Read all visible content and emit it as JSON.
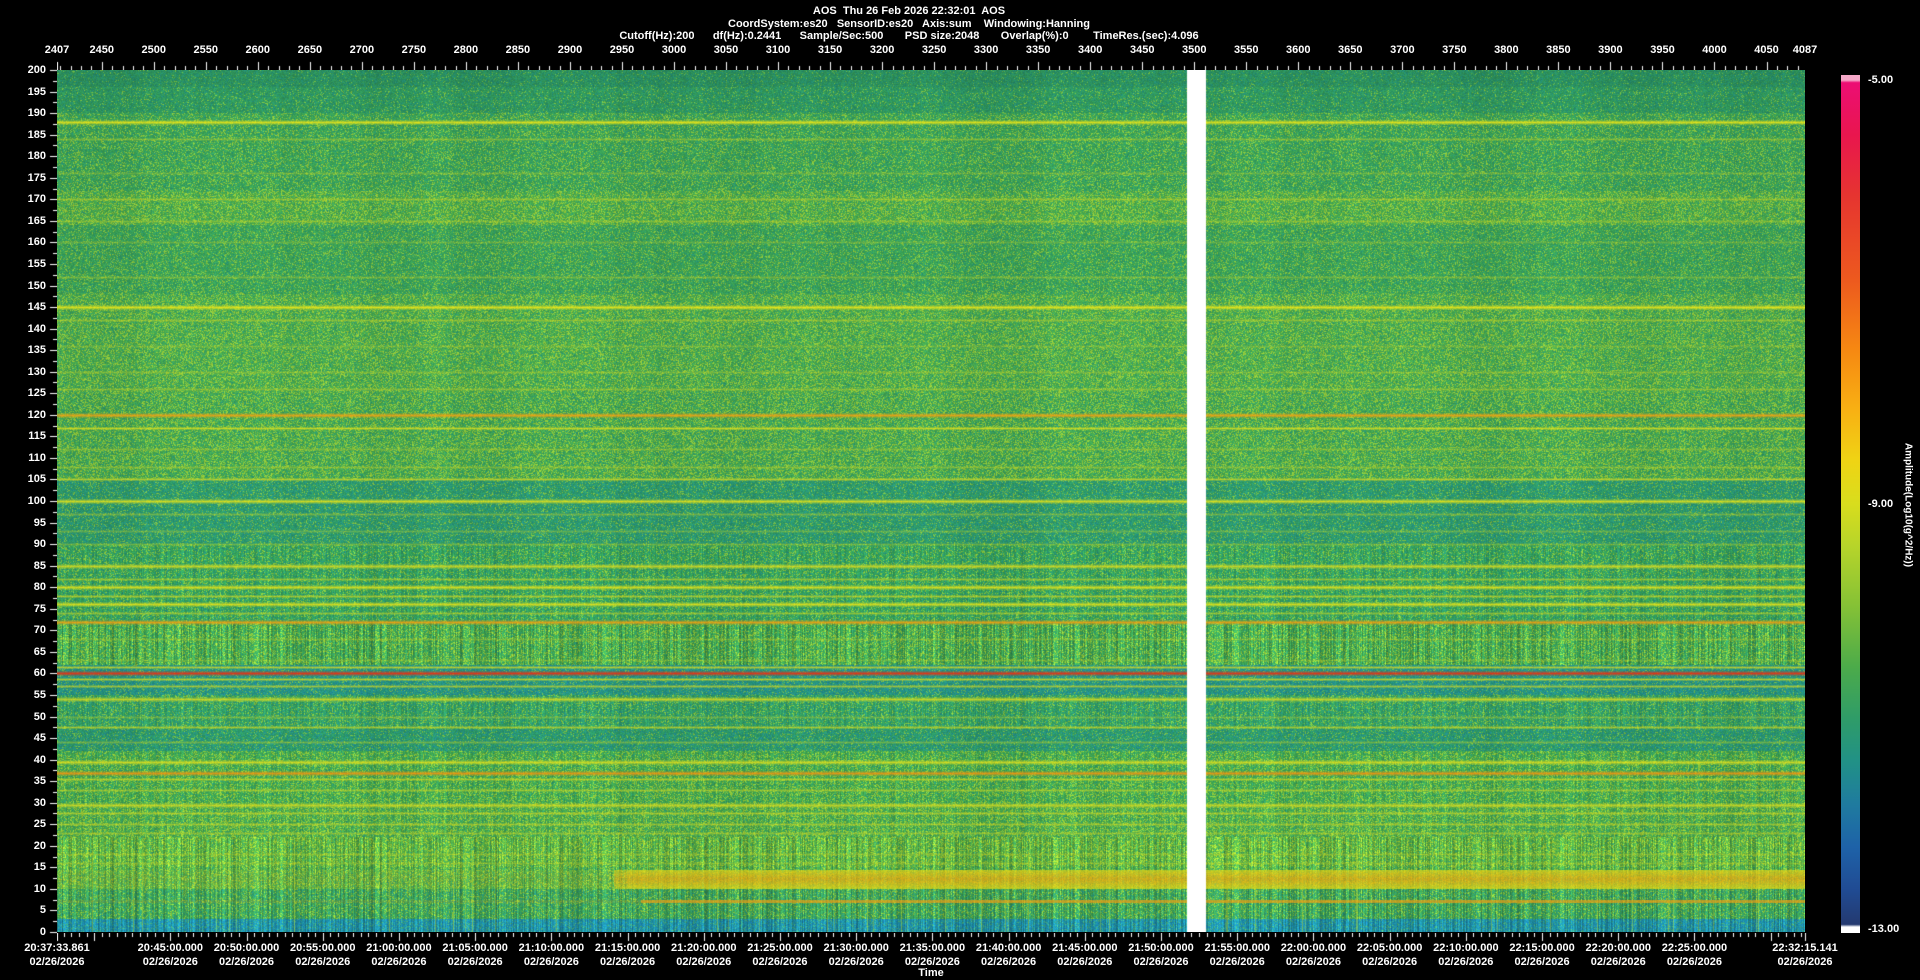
{
  "header": {
    "line1": "AOS  Thu 26 Feb 2026 22:32:01  AOS",
    "line2": "CoordSystem:es20   SensorID:es20   Axis:sum    Windowing:Hanning",
    "line3": "Cutoff(Hz):200      df(Hz):0.2441      Sample/Sec:500       PSD size:2048       Overlap(%):0        TimeRes.(sec):4.096"
  },
  "chart_data": {
    "type": "heatmap",
    "subtype": "spectrogram",
    "record_axis": {
      "min": 2407,
      "max": 4087,
      "ticks": [
        2407,
        2450,
        2500,
        2550,
        2600,
        2650,
        2700,
        2750,
        2800,
        2850,
        2900,
        2950,
        3000,
        3050,
        3100,
        3150,
        3200,
        3250,
        3300,
        3350,
        3400,
        3450,
        3500,
        3550,
        3600,
        3650,
        3700,
        3750,
        3800,
        3850,
        3900,
        3950,
        4000,
        4050,
        4087
      ],
      "minor_step": 10
    },
    "freq_axis": {
      "unit": "Hz",
      "min": 0,
      "max": 200,
      "ticks": [
        200,
        195,
        190,
        185,
        180,
        175,
        170,
        165,
        160,
        155,
        150,
        145,
        140,
        135,
        130,
        125,
        120,
        115,
        110,
        105,
        100,
        95,
        90,
        85,
        80,
        75,
        70,
        65,
        60,
        55,
        50,
        45,
        40,
        35,
        30,
        25,
        20,
        15,
        10,
        5,
        0
      ],
      "minor_step": 2.5
    },
    "time_axis": {
      "title": "Time",
      "date": "02/26/2026",
      "start": "20:37:33.861",
      "end": "22:32:15.141",
      "total_seconds": 6881.28,
      "ticks": [
        [
          "20:37:33.861",
          0
        ],
        [
          "20:45:00.000",
          446.139
        ],
        [
          "20:50:00.000",
          746.139
        ],
        [
          "20:55:00.000",
          1046.139
        ],
        [
          "21:00:00.000",
          1346.139
        ],
        [
          "21:05:00.000",
          1646.139
        ],
        [
          "21:10:00.000",
          1946.139
        ],
        [
          "21:15:00.000",
          2246.139
        ],
        [
          "21:20:00.000",
          2546.139
        ],
        [
          "21:25:00.000",
          2846.139
        ],
        [
          "21:30:00.000",
          3146.139
        ],
        [
          "21:35:00.000",
          3446.139
        ],
        [
          "21:40:00.000",
          3746.139
        ],
        [
          "21:45:00.000",
          4046.139
        ],
        [
          "21:50:00.000",
          4346.139
        ],
        [
          "21:55:00.000",
          4646.139
        ],
        [
          "22:00:00.000",
          4946.139
        ],
        [
          "22:05:00.000",
          5246.139
        ],
        [
          "22:10:00.000",
          5546.139
        ],
        [
          "22:15:00.000",
          5846.139
        ],
        [
          "22:20:00.000",
          6146.139
        ],
        [
          "22:25:00.000",
          6446.139
        ],
        [
          "22:32:15.141",
          6881.28
        ]
      ]
    },
    "colorbar": {
      "label": "Amplitude(Log10(g^2/Hz))",
      "tick_labels": [
        "-5.00",
        "-9.00",
        "-13.00"
      ],
      "tick_values": [
        -5,
        -9,
        -13
      ],
      "overflow_cap_color": "#f5a8c8",
      "underflow_cap_color": "#ffffff",
      "gradient_stops": [
        [
          0,
          "#f5a8c8"
        ],
        [
          0.6,
          "#f5a8c8"
        ],
        [
          0.9,
          "#ec0e74"
        ],
        [
          7,
          "#e9164e"
        ],
        [
          14,
          "#e63430"
        ],
        [
          24,
          "#ed5a1e"
        ],
        [
          32,
          "#f68812"
        ],
        [
          39,
          "#f8b013"
        ],
        [
          45,
          "#efd414"
        ],
        [
          50,
          "#d8dd1d"
        ],
        [
          55,
          "#b6d42a"
        ],
        [
          62,
          "#84c136"
        ],
        [
          69,
          "#4cab4a"
        ],
        [
          75,
          "#2f9c68"
        ],
        [
          80,
          "#219186"
        ],
        [
          85,
          "#1f7b9f"
        ],
        [
          90,
          "#1e62a8"
        ],
        [
          95,
          "#204b93"
        ],
        [
          99.0,
          "#243a70"
        ],
        [
          99.3,
          "#ffffff"
        ],
        [
          100,
          "#ffffff"
        ]
      ]
    },
    "background_bands": [
      [
        196,
        200.01,
        "#2e9058",
        "#1e8678",
        0.3,
        "#7cbe3a",
        0.06,
        0
      ],
      [
        190,
        196,
        "#31985a",
        "#208a7c",
        0.24,
        "#90c838",
        0.1,
        0
      ],
      [
        172,
        190,
        "#3aa156",
        "#23907a",
        0.16,
        "#a0ce34",
        0.22,
        0
      ],
      [
        164,
        172,
        "#47a84e",
        "#23907a",
        0.1,
        "#aad032",
        0.3,
        0
      ],
      [
        148,
        164,
        "#3aa156",
        "#23907a",
        0.16,
        "#9ccc36",
        0.2,
        0
      ],
      [
        125,
        148,
        "#46a850",
        "#23907a",
        0.12,
        "#a8d032",
        0.28,
        0
      ],
      [
        105,
        125,
        "#42a552",
        "#22907c",
        0.14,
        "#a6d032",
        0.3,
        0
      ],
      [
        90,
        105,
        "#2f9a66",
        "#1f8e8e",
        0.26,
        "#94c838",
        0.14,
        0
      ],
      [
        72,
        90,
        "#34a05a",
        "#218c84",
        0.2,
        "#9ccc34",
        0.2,
        1
      ],
      [
        62,
        72,
        "#3ca254",
        "#23907a",
        0.1,
        "#a4ce32",
        0.3,
        2
      ],
      [
        55,
        62,
        "#27957c",
        "#1f82a2",
        0.22,
        "#8cc43a",
        0.12,
        0
      ],
      [
        47,
        55,
        "#339e60",
        "#208c8c",
        0.2,
        "#98ca36",
        0.18,
        1
      ],
      [
        42,
        47,
        "#2d9a68",
        "#1f8898",
        0.24,
        "#90c638",
        0.12,
        0
      ],
      [
        30,
        42,
        "#3ea452",
        "#22907e",
        0.1,
        "#a6d032",
        0.28,
        1
      ],
      [
        22,
        30,
        "#44a650",
        "#23907a",
        0.1,
        "#aad030",
        0.3,
        1
      ],
      [
        15,
        22,
        "#52ac48",
        "#24927a",
        0.08,
        "#b2d42e",
        0.32,
        2
      ],
      [
        10,
        15,
        "#48a84c",
        "#23907c",
        0.1,
        "#a8d032",
        0.28,
        2
      ],
      [
        3,
        10,
        "#3aa058",
        "#21908a",
        0.16,
        "#9ccc34",
        0.22,
        2
      ],
      [
        0,
        3,
        "#1f93a4",
        "#1b7cb0",
        0.28,
        "#52b06a",
        0.16,
        2
      ]
    ],
    "spectral_lines": [
      [
        188,
        "#e9e518",
        2,
        0.92
      ],
      [
        184,
        "#c9d922",
        1,
        0.45
      ],
      [
        176,
        "#c4d726",
        1,
        0.33
      ],
      [
        170,
        "#d4dc20",
        1,
        0.48
      ],
      [
        165,
        "#cbd923",
        1,
        0.42
      ],
      [
        160,
        "#c2d527",
        1,
        0.32
      ],
      [
        152,
        "#cad923",
        1,
        0.38
      ],
      [
        145,
        "#ece718",
        2,
        0.92
      ],
      [
        142,
        "#d2da20",
        1,
        0.48
      ],
      [
        136,
        "#c2d527",
        1,
        0.3
      ],
      [
        130,
        "#cbd923",
        1,
        0.38
      ],
      [
        126,
        "#d2da20",
        1,
        0.42
      ],
      [
        120,
        "#f3a311",
        2,
        0.92
      ],
      [
        117,
        "#e7e31b",
        1,
        0.8
      ],
      [
        112,
        "#cad823",
        1,
        0.38
      ],
      [
        108,
        "#cdd922",
        1,
        0.42
      ],
      [
        105,
        "#e3e11c",
        1,
        0.75
      ],
      [
        100,
        "#e9e518",
        2,
        0.88
      ],
      [
        97,
        "#cdd922",
        1,
        0.42
      ],
      [
        93,
        "#c6d725",
        1,
        0.36
      ],
      [
        90,
        "#cbd922",
        1,
        0.38
      ],
      [
        85,
        "#e5e11b",
        2,
        0.82
      ],
      [
        82,
        "#dadf1e",
        1,
        0.55
      ],
      [
        80,
        "#e9e518",
        2,
        0.88
      ],
      [
        78,
        "#dfe01d",
        1,
        0.65
      ],
      [
        76,
        "#e9e518",
        2,
        0.88
      ],
      [
        74,
        "#dadf1e",
        1,
        0.55
      ],
      [
        72,
        "#f19f11",
        2,
        0.92
      ],
      [
        68,
        "#cdda22",
        1,
        0.36
      ],
      [
        63,
        "#cad923",
        1,
        0.32
      ],
      [
        61.4,
        "#e6e21b",
        1,
        0.75
      ],
      [
        60,
        "#e23417",
        2,
        1.0
      ],
      [
        58.6,
        "#e6e21b",
        1,
        0.75
      ],
      [
        57,
        "#e1df1c",
        1,
        0.65
      ],
      [
        54,
        "#e5e11b",
        2,
        0.8
      ],
      [
        50,
        "#cad923",
        1,
        0.38
      ],
      [
        47.5,
        "#dfdf1d",
        1,
        0.65
      ],
      [
        44,
        "#cdd922",
        1,
        0.42
      ],
      [
        39.5,
        "#e7e31b",
        2,
        0.82
      ],
      [
        37,
        "#f1930f",
        2,
        0.92
      ],
      [
        35.5,
        "#e3df1c",
        1,
        0.65
      ],
      [
        33,
        "#d6dc1f",
        1,
        0.55
      ],
      [
        29.5,
        "#e5e11b",
        2,
        0.75
      ],
      [
        27.5,
        "#dedf1d",
        1,
        0.6
      ],
      [
        25,
        "#dadd1e",
        1,
        0.55
      ],
      [
        23,
        "#d2da20",
        1,
        0.48
      ],
      [
        18,
        "#cad822",
        1,
        0.38
      ],
      [
        16,
        "#ccd922",
        1,
        0.35
      ]
    ],
    "low_freq_event": {
      "band_hz": [
        10.2,
        14.6
      ],
      "onset_seconds": 2190,
      "core_color": "#f2ab10",
      "edge_color": "#e6d816",
      "pre_alpha": 0.22,
      "post_alpha": 0.78
    },
    "low_freq_line": {
      "freq": 7.2,
      "onset_seconds": 2295,
      "color": "#f0a012",
      "alpha": 0.75
    },
    "data_gap": {
      "record_start": 3493,
      "record_end": 3510,
      "color": "#ffffff"
    }
  }
}
